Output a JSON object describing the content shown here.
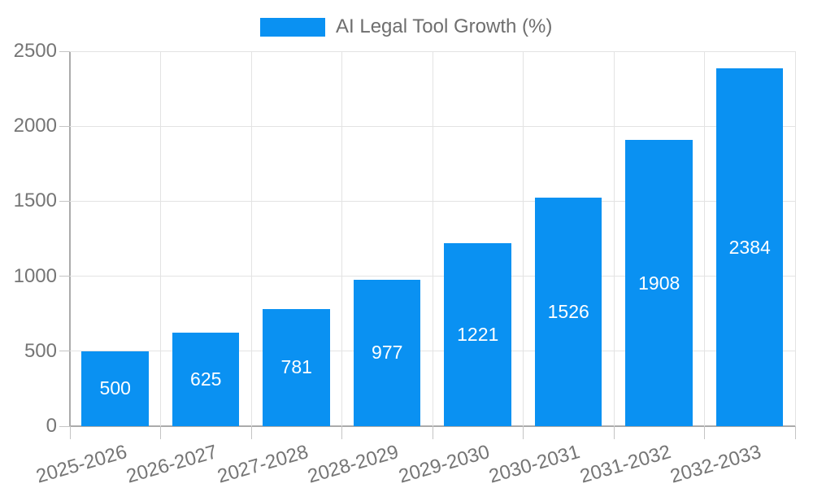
{
  "chart_data": {
    "type": "bar",
    "title": "",
    "legend_label": "AI Legal Tool Growth (%)",
    "legend_position": "top-center",
    "categories": [
      "2025-2026",
      "2026-2027",
      "2027-2028",
      "2028-2029",
      "2029-2030",
      "2030-2031",
      "2031-2032",
      "2032-2033"
    ],
    "values": [
      500,
      625,
      781,
      977,
      1221,
      1526,
      1908,
      2384
    ],
    "value_labels": [
      "500",
      "625",
      "781",
      "977",
      "1221",
      "1526",
      "1908",
      "2384"
    ],
    "xlabel": "",
    "ylabel": "",
    "ylim": [
      0,
      2500
    ],
    "yticks": [
      "0",
      "500",
      "1000",
      "1500",
      "2000",
      "2500"
    ],
    "grid": "on",
    "colors": {
      "bar": "#0a91f2",
      "value_label": "#ffffff",
      "gridline": "#e3e3e3",
      "axis": "#ababab",
      "tick": "#c4c4c4",
      "tick_label": "#757575",
      "legend_text": "#6e6e6e",
      "background": "#ffffff"
    }
  }
}
